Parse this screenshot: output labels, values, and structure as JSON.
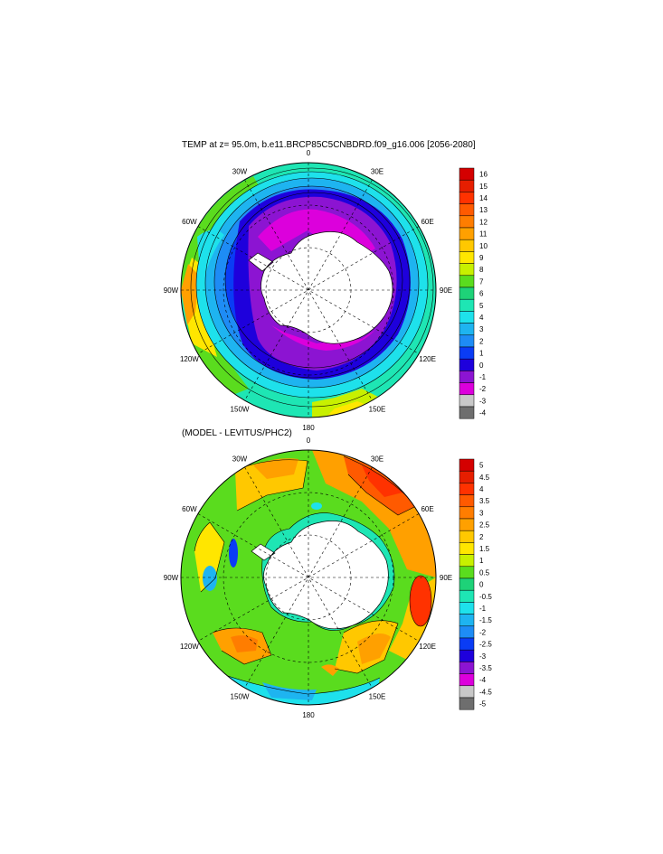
{
  "panels": [
    {
      "id": "temp",
      "title": "TEMP at z=  95.0m, b.e11.BRCP85C5CNBDRD.f09_g16.006 [2056-2080]",
      "lon_labels": [
        "0",
        "30E",
        "60E",
        "90E",
        "120E",
        "150E",
        "180",
        "150W",
        "120W",
        "90W",
        "60W",
        "30W"
      ],
      "colorbar": {
        "labels": [
          "16",
          "15",
          "14",
          "13",
          "12",
          "11",
          "10",
          "9",
          "8",
          "7",
          "6",
          "5",
          "4",
          "3",
          "2",
          "1",
          "0",
          "-1",
          "-2",
          "-3",
          "-4"
        ],
        "colors": [
          "#d40000",
          "#e61e00",
          "#ff3200",
          "#ff5a00",
          "#ff7d00",
          "#ffa000",
          "#ffc800",
          "#ffe600",
          "#c8f000",
          "#5adc1e",
          "#1ed278",
          "#1ee6b4",
          "#1ee1eb",
          "#1eb4f0",
          "#1e8cf5",
          "#0a3cf5",
          "#1e00dc",
          "#8c14d2",
          "#dc00dc",
          "#c8c8c8",
          "#6e6e6e"
        ]
      }
    },
    {
      "id": "diff",
      "title": "(MODEL - LEVITUS/PHC2)",
      "lon_labels": [
        "0",
        "30E",
        "60E",
        "90E",
        "120E",
        "150E",
        "180",
        "150W",
        "120W",
        "90W",
        "60W",
        "30W"
      ],
      "colorbar": {
        "labels": [
          "5",
          "4.5",
          "4",
          "3.5",
          "3",
          "2.5",
          "2",
          "1.5",
          "1",
          "0.5",
          "0",
          "-0.5",
          "-1",
          "-1.5",
          "-2",
          "-2.5",
          "-3",
          "-3.5",
          "-4",
          "-4.5",
          "-5"
        ],
        "colors": [
          "#d40000",
          "#e61e00",
          "#ff3200",
          "#ff5a00",
          "#ff7d00",
          "#ffa000",
          "#ffc800",
          "#ffe600",
          "#c8f000",
          "#5adc1e",
          "#1ed278",
          "#1ee6b4",
          "#1ee1eb",
          "#1eb4f0",
          "#1e8cf5",
          "#0a3cf5",
          "#1e00dc",
          "#8c14d2",
          "#dc00dc",
          "#c8c8c8",
          "#6e6e6e"
        ]
      }
    }
  ]
}
